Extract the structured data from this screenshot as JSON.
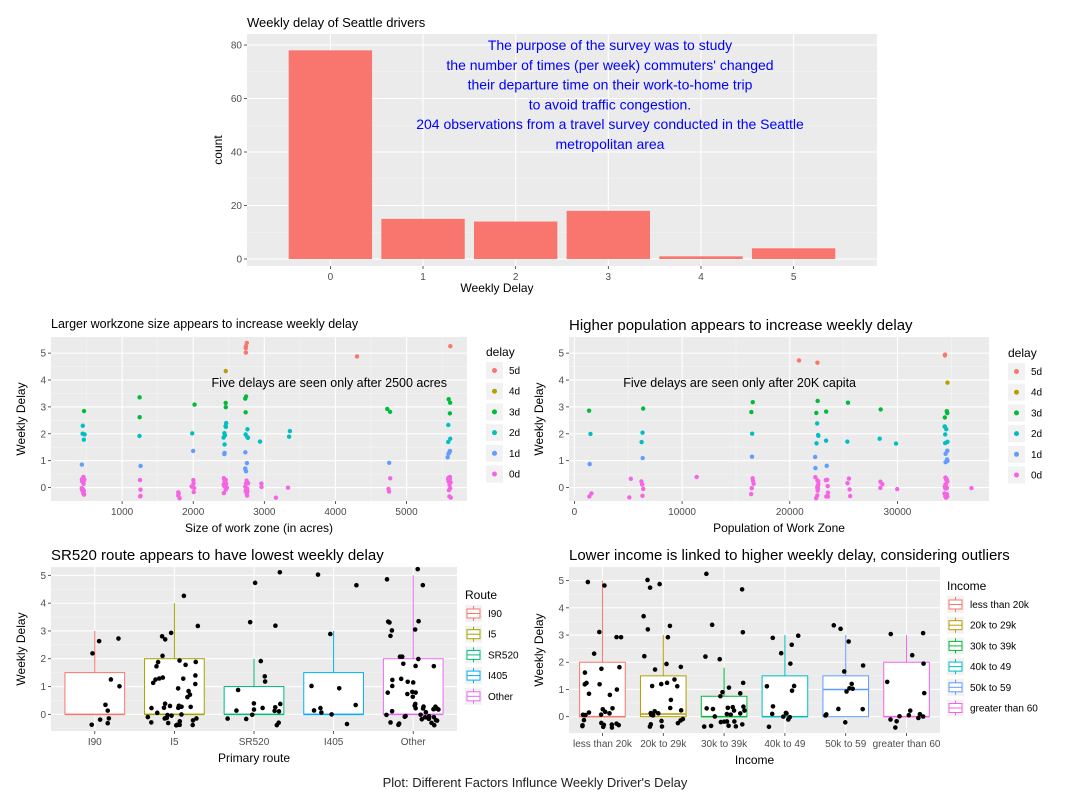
{
  "caption": "Plot: Different Factors Influnce Weekly Driver's Delay",
  "chart_data": [
    {
      "id": "hist",
      "type": "bar",
      "title": "Weekly delay of Seattle drivers",
      "xlabel": "Weekly Delay",
      "ylabel": "count",
      "categories": [
        "0",
        "1",
        "2",
        "3",
        "4",
        "5"
      ],
      "values": [
        78,
        15,
        14,
        18,
        1,
        4
      ],
      "ylim": [
        0,
        80
      ],
      "yticks": [
        0,
        20,
        40,
        60,
        80
      ],
      "bar_color": "#F8766D",
      "annotation": [
        "The purpose of the survey was to study",
        "the number of times (per week) commuters' changed",
        "their departure time on their work-to-home trip",
        "to avoid traffic congestion.",
        "204 observations from a travel survey conducted in the Seattle",
        "metropolitan area"
      ],
      "annotation_color": "#0000FF",
      "grid": true
    },
    {
      "id": "size",
      "type": "scatter",
      "title": "Larger workzone size appears to increase weekly delay",
      "xlabel": "Size of work zone (in acres)",
      "ylabel": "Weekly Delay",
      "xlim": [
        0,
        5850
      ],
      "ylim": [
        -0.5,
        5.6
      ],
      "xticks": [
        1000,
        2000,
        3000,
        4000,
        5000
      ],
      "yticks": [
        0,
        1,
        2,
        3,
        4,
        5
      ],
      "annotation": "Five delays are seen only after 2500 acres",
      "legend_title": "delay",
      "legend": [
        "5d",
        "4d",
        "3d",
        "2d",
        "1d",
        "0d"
      ],
      "series_colors": [
        "#F8766D",
        "#B79F00",
        "#00BA38",
        "#00BFC4",
        "#619CFF",
        "#F564E3"
      ],
      "groups": [
        {
          "x": 450,
          "y": [
            0,
            0,
            0,
            0,
            0,
            0,
            0,
            0,
            0,
            0,
            0,
            0,
            0,
            0,
            0,
            0,
            1,
            2,
            2,
            2,
            2,
            3
          ]
        },
        {
          "x": 1250,
          "y": [
            0,
            0,
            0,
            0,
            1,
            2,
            3,
            3
          ]
        },
        {
          "x": 1800,
          "y": [
            0,
            0,
            0,
            0
          ]
        },
        {
          "x": 2000,
          "y": [
            0,
            0,
            0,
            0,
            0,
            0,
            1,
            2,
            3
          ]
        },
        {
          "x": 2450,
          "y": [
            0,
            0,
            0,
            0,
            0,
            0,
            0,
            0,
            0,
            0,
            0,
            1,
            1,
            2,
            2,
            2,
            2,
            2,
            2,
            2,
            3,
            3,
            4
          ]
        },
        {
          "x": 2750,
          "y": [
            0,
            0,
            0,
            0,
            0,
            0,
            0,
            0,
            0,
            0,
            0,
            1,
            1,
            1,
            1,
            1,
            2,
            2,
            2,
            2,
            3,
            3,
            3,
            5,
            5,
            5,
            5
          ]
        },
        {
          "x": 2950,
          "y": [
            0,
            0,
            2
          ]
        },
        {
          "x": 3150,
          "y": [
            0
          ]
        },
        {
          "x": 3350,
          "y": [
            0,
            2,
            2
          ]
        },
        {
          "x": 4300,
          "y": [
            5
          ]
        },
        {
          "x": 4750,
          "y": [
            0,
            0,
            0,
            1,
            3,
            3
          ]
        },
        {
          "x": 5600,
          "y": [
            0,
            0,
            0,
            0,
            0,
            0,
            0,
            0,
            0,
            0,
            0,
            0,
            1,
            1,
            1,
            1,
            2,
            2,
            2,
            3,
            3,
            3,
            5
          ]
        }
      ],
      "grid": true
    },
    {
      "id": "pop",
      "type": "scatter",
      "title": "Higher population appears to increase weekly delay",
      "xlabel": "Population of Work Zone",
      "ylabel": "Weekly Delay",
      "xlim": [
        -500,
        38500
      ],
      "ylim": [
        -0.5,
        5.6
      ],
      "xticks": [
        0,
        10000,
        20000,
        30000
      ],
      "yticks": [
        0,
        1,
        2,
        3,
        4,
        5
      ],
      "annotation": "Five delays are seen only after 20K capita",
      "legend_title": "delay",
      "legend": [
        "5d",
        "4d",
        "3d",
        "2d",
        "1d",
        "0d"
      ],
      "series_colors": [
        "#F8766D",
        "#B79F00",
        "#00BA38",
        "#00BFC4",
        "#619CFF",
        "#F564E3"
      ],
      "groups": [
        {
          "x": 1500,
          "y": [
            0,
            0,
            1,
            2,
            3
          ]
        },
        {
          "x": 5200,
          "y": [
            0,
            0
          ]
        },
        {
          "x": 6300,
          "y": [
            0,
            0,
            0,
            0,
            1,
            2,
            2,
            3
          ]
        },
        {
          "x": 11500,
          "y": [
            0
          ]
        },
        {
          "x": 16500,
          "y": [
            0,
            0,
            0,
            0,
            0,
            1,
            2,
            3,
            3
          ]
        },
        {
          "x": 21000,
          "y": [
            5
          ]
        },
        {
          "x": 22500,
          "y": [
            0,
            0,
            0,
            0,
            0,
            0,
            0,
            0,
            0,
            0,
            0,
            1,
            1,
            2,
            2,
            2,
            2,
            3,
            3,
            5
          ]
        },
        {
          "x": 23500,
          "y": [
            0,
            0,
            0,
            0,
            0,
            0,
            1,
            2,
            3
          ]
        },
        {
          "x": 25500,
          "y": [
            0,
            0,
            0,
            0,
            2,
            3
          ]
        },
        {
          "x": 28500,
          "y": [
            0,
            0,
            0,
            2,
            3
          ]
        },
        {
          "x": 30000,
          "y": [
            0,
            2
          ]
        },
        {
          "x": 34500,
          "y": [
            0,
            0,
            0,
            0,
            0,
            0,
            0,
            0,
            0,
            0,
            0,
            0,
            0,
            0,
            0,
            0,
            0,
            1,
            1,
            1,
            1,
            1,
            2,
            2,
            2,
            2,
            2,
            2,
            3,
            3,
            3,
            4,
            5,
            5
          ]
        },
        {
          "x": 36800,
          "y": [
            0
          ]
        }
      ],
      "grid": true
    },
    {
      "id": "route",
      "type": "boxplot",
      "title": "SR520 route appears to have lowest weekly delay",
      "xlabel": "Primary route",
      "ylabel": "Weekly Delay",
      "categories": [
        "I90",
        "I5",
        "SR520",
        "I405",
        "Other"
      ],
      "ylim": [
        -0.6,
        5.3
      ],
      "yticks": [
        0,
        1,
        2,
        3,
        4,
        5
      ],
      "legend_title": "Route",
      "legend": [
        "I90",
        "I5",
        "SR520",
        "I405",
        "Other"
      ],
      "series_colors": [
        "#F8766D",
        "#A3A500",
        "#00BF7D",
        "#00B0F6",
        "#E76BF3"
      ],
      "boxes": [
        {
          "q1": 0,
          "median": 0,
          "q3": 1.5,
          "whisker_low": 0,
          "whisker_high": 3
        },
        {
          "q1": 0,
          "median": 0,
          "q3": 2,
          "whisker_low": 0,
          "whisker_high": 4
        },
        {
          "q1": 0,
          "median": 0,
          "q3": 1,
          "whisker_low": 0,
          "whisker_high": 2
        },
        {
          "q1": 0,
          "median": 0,
          "q3": 1.5,
          "whisker_low": 0,
          "whisker_high": 3
        },
        {
          "q1": 0,
          "median": 0,
          "q3": 2,
          "whisker_low": 0,
          "whisker_high": 5
        }
      ],
      "points": [
        {
          "values": [
            0,
            0,
            0,
            0,
            0,
            0,
            1,
            1,
            2,
            3,
            3
          ]
        },
        {
          "values": [
            0,
            0,
            0,
            0,
            0,
            0,
            0,
            0,
            0,
            0,
            0,
            0,
            0,
            0,
            0,
            0,
            0,
            0,
            0,
            0,
            0,
            0,
            0,
            0,
            1,
            1,
            1,
            1,
            1,
            1,
            1,
            1,
            1,
            1,
            1,
            2,
            2,
            2,
            2,
            2,
            2,
            3,
            3,
            3,
            3,
            4
          ]
        },
        {
          "values": [
            0,
            0,
            0,
            0,
            0,
            0,
            0,
            0,
            0,
            0,
            0,
            0,
            0,
            1,
            1,
            1,
            2,
            3,
            3,
            5,
            5
          ]
        },
        {
          "values": [
            0,
            0,
            0,
            0,
            0,
            0,
            1,
            1,
            3,
            5,
            5
          ]
        },
        {
          "values": [
            0,
            0,
            0,
            0,
            0,
            0,
            0,
            0,
            0,
            0,
            0,
            0,
            0,
            0,
            0,
            0,
            0,
            0,
            0,
            0,
            0,
            0,
            0,
            0,
            0,
            0,
            0,
            0,
            0,
            1,
            1,
            1,
            1,
            1,
            1,
            1,
            1,
            1,
            1,
            2,
            2,
            2,
            2,
            2,
            2,
            3,
            3,
            3,
            3,
            3,
            3,
            5,
            5,
            5
          ]
        }
      ],
      "grid": true
    },
    {
      "id": "income",
      "type": "boxplot",
      "title": "Lower income is linked to higher weekly delay, considering outliers",
      "xlabel": "Income",
      "ylabel": "Weekly Delay",
      "categories": [
        "less than 20k",
        "20k to 29k",
        "30k to 39k",
        "40k to 49",
        "50k to 59",
        "greater than 60"
      ],
      "ylim": [
        -0.6,
        5.5
      ],
      "yticks": [
        0,
        1,
        2,
        3,
        4,
        5
      ],
      "legend_title": "Income",
      "legend": [
        "less than 20k",
        "20k to 29k",
        "30k to 39k",
        "40k to 49",
        "50k to 59",
        "greater than 60"
      ],
      "series_colors": [
        "#F8766D",
        "#B79F00",
        "#00BA38",
        "#00BFC4",
        "#619CFF",
        "#F564E3"
      ],
      "boxes": [
        {
          "q1": 0,
          "median": 0,
          "q3": 2,
          "whisker_low": 0,
          "whisker_high": 5
        },
        {
          "q1": 0,
          "median": 0.1,
          "q3": 1.5,
          "whisker_low": 0,
          "whisker_high": 3
        },
        {
          "q1": 0,
          "median": 0,
          "q3": 0.75,
          "whisker_low": 0,
          "whisker_high": 1.8
        },
        {
          "q1": 0,
          "median": 0,
          "q3": 1.5,
          "whisker_low": 0,
          "whisker_high": 3
        },
        {
          "q1": 0,
          "median": 1,
          "q3": 1.5,
          "whisker_low": 0,
          "whisker_high": 3
        },
        {
          "q1": 0,
          "median": 0,
          "q3": 2,
          "whisker_low": 0,
          "whisker_high": 3
        }
      ],
      "points": [
        {
          "values": [
            0,
            0,
            0,
            0,
            0,
            0,
            0,
            0,
            0,
            0,
            0,
            0,
            0,
            0,
            0,
            0,
            0,
            0,
            1,
            1,
            1,
            1,
            1,
            1,
            2,
            2,
            2,
            2,
            3,
            3,
            3,
            5,
            5
          ]
        },
        {
          "values": [
            0,
            0,
            0,
            0,
            0,
            0,
            0,
            0,
            0,
            0,
            0,
            0,
            0,
            0,
            1,
            1,
            1,
            1,
            1,
            1,
            2,
            2,
            2,
            2,
            3,
            3,
            3,
            4,
            5,
            5,
            5
          ]
        },
        {
          "values": [
            0,
            0,
            0,
            0,
            0,
            0,
            0,
            0,
            0,
            0,
            0,
            0,
            0,
            0,
            0,
            0,
            0,
            0,
            0,
            0,
            1,
            1,
            1,
            1,
            1,
            2,
            2,
            3,
            3,
            5,
            5
          ]
        },
        {
          "values": [
            0,
            0,
            0,
            0,
            0,
            0,
            0,
            0,
            1,
            1,
            1,
            2,
            2,
            3,
            3,
            3
          ]
        },
        {
          "values": [
            0,
            0,
            0,
            0,
            0,
            1,
            1,
            1,
            1,
            2,
            2,
            3,
            3,
            3
          ]
        },
        {
          "values": [
            0,
            0,
            0,
            0,
            0,
            0,
            0,
            0,
            0,
            1,
            1,
            2,
            2,
            3,
            3
          ]
        }
      ],
      "grid": true
    }
  ]
}
